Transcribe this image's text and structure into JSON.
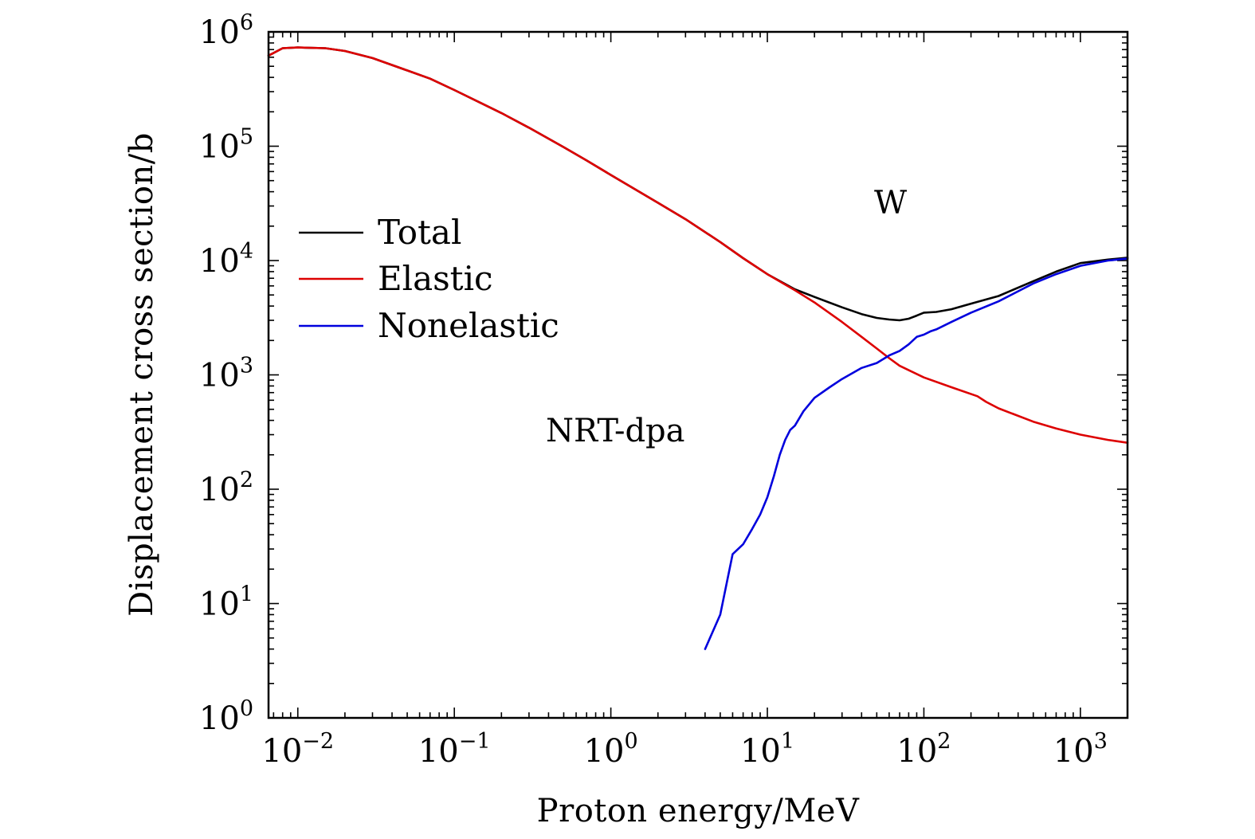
{
  "chart_data": {
    "type": "line",
    "title": "",
    "xlabel": "Proton energy/MeV",
    "ylabel": "Displacement cross section/b",
    "xscale": "log",
    "yscale": "log",
    "xlim": [
      0.0065,
      2000
    ],
    "ylim": [
      1,
      1000000
    ],
    "x_ticks": [
      {
        "base": "10",
        "exp": "−2",
        "value": 0.01
      },
      {
        "base": "10",
        "exp": "−1",
        "value": 0.1
      },
      {
        "base": "10",
        "exp": "0",
        "value": 1
      },
      {
        "base": "10",
        "exp": "1",
        "value": 10
      },
      {
        "base": "10",
        "exp": "2",
        "value": 100
      },
      {
        "base": "10",
        "exp": "3",
        "value": 1000
      }
    ],
    "y_ticks": [
      {
        "base": "10",
        "exp": "0",
        "value": 1
      },
      {
        "base": "10",
        "exp": "1",
        "value": 10
      },
      {
        "base": "10",
        "exp": "2",
        "value": 100
      },
      {
        "base": "10",
        "exp": "3",
        "value": 1000
      },
      {
        "base": "10",
        "exp": "4",
        "value": 10000
      },
      {
        "base": "10",
        "exp": "5",
        "value": 100000
      },
      {
        "base": "10",
        "exp": "6",
        "value": 1000000
      }
    ],
    "legend_position": "center-left",
    "annotations": [
      {
        "text": "W",
        "x": 60,
        "y": 25000
      },
      {
        "text": "NRT-dpa",
        "x": 1.1,
        "y": 400
      }
    ],
    "series": [
      {
        "name": "Total",
        "color": "#000000",
        "x": [
          0.0065,
          0.008,
          0.01,
          0.015,
          0.02,
          0.03,
          0.05,
          0.07,
          0.1,
          0.2,
          0.3,
          0.5,
          0.7,
          1,
          2,
          3,
          5,
          7,
          10,
          15,
          20,
          30,
          40,
          50,
          60,
          70,
          80,
          90,
          100,
          120,
          150,
          200,
          300,
          500,
          700,
          1000,
          1500,
          2000
        ],
        "y": [
          620000,
          720000,
          730000,
          720000,
          680000,
          590000,
          460000,
          390000,
          310000,
          195000,
          145000,
          98000,
          75000,
          56000,
          32000,
          23000,
          14500,
          10500,
          7600,
          5600,
          4800,
          3900,
          3400,
          3150,
          3050,
          3000,
          3100,
          3300,
          3500,
          3550,
          3750,
          4200,
          4900,
          6600,
          8000,
          9500,
          10200,
          10600
        ]
      },
      {
        "name": "Elastic",
        "color": "#dd0000",
        "x": [
          0.0065,
          0.008,
          0.01,
          0.015,
          0.02,
          0.03,
          0.05,
          0.07,
          0.1,
          0.2,
          0.3,
          0.5,
          0.7,
          1,
          2,
          3,
          5,
          7,
          10,
          15,
          20,
          30,
          40,
          50,
          60,
          70,
          80,
          100,
          150,
          220,
          250,
          300,
          500,
          700,
          1000,
          1500,
          2000
        ],
        "y": [
          620000,
          720000,
          730000,
          720000,
          680000,
          590000,
          460000,
          390000,
          310000,
          195000,
          145000,
          98000,
          75000,
          56000,
          32000,
          23000,
          14500,
          10500,
          7600,
          5500,
          4300,
          2900,
          2150,
          1700,
          1400,
          1200,
          1100,
          950,
          780,
          650,
          580,
          510,
          390,
          340,
          300,
          270,
          255
        ]
      },
      {
        "name": "Nonelastic",
        "color": "#0000dd",
        "x": [
          4,
          5,
          6,
          7,
          8,
          9,
          10,
          11,
          12,
          13,
          14,
          15,
          17,
          20,
          25,
          30,
          40,
          50,
          60,
          70,
          80,
          90,
          100,
          110,
          120,
          150,
          200,
          300,
          500,
          700,
          1000,
          1500,
          2000
        ],
        "y": [
          4,
          8,
          27,
          33,
          45,
          60,
          85,
          130,
          200,
          270,
          330,
          360,
          480,
          630,
          780,
          920,
          1150,
          1270,
          1480,
          1620,
          1850,
          2150,
          2250,
          2400,
          2500,
          2900,
          3500,
          4400,
          6300,
          7600,
          9000,
          10000,
          10400
        ]
      }
    ]
  }
}
